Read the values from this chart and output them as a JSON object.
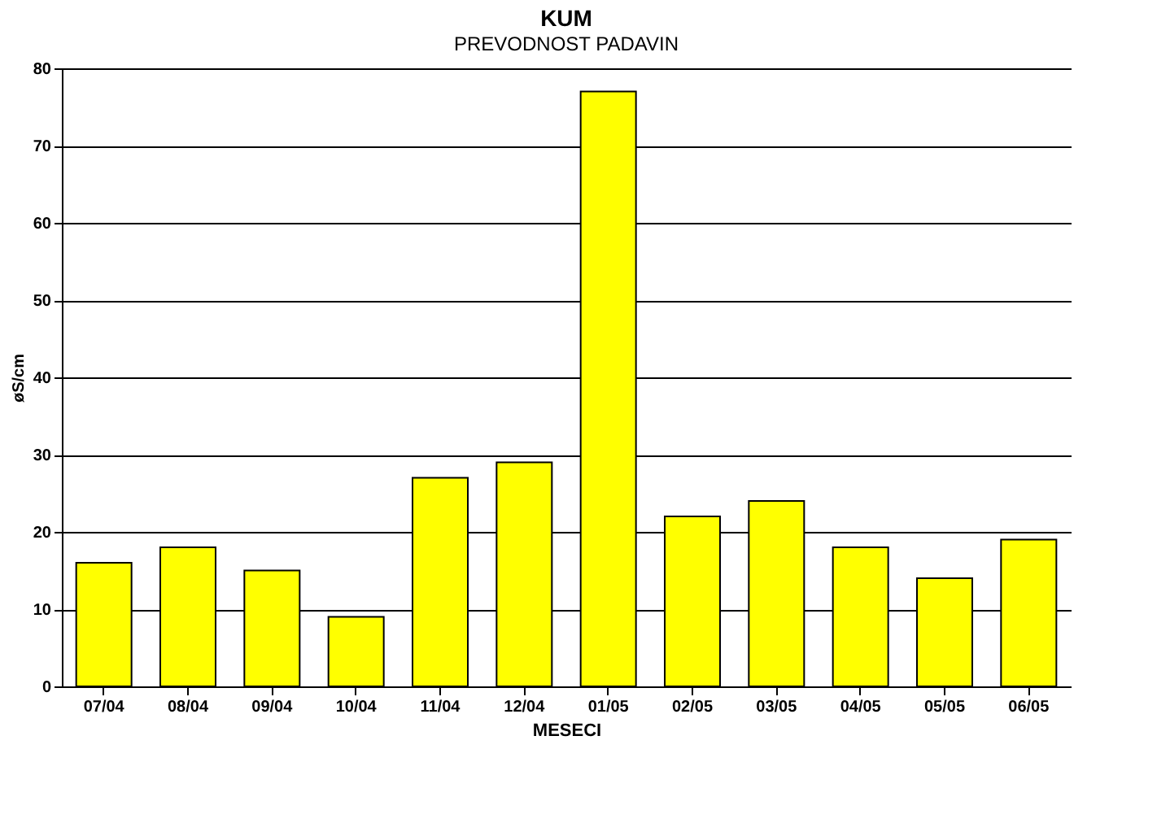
{
  "chart_data": {
    "type": "bar",
    "title": "KUM",
    "subtitle": "PREVODNOST PADAVIN",
    "xlabel": "MESECI",
    "ylabel": "øS/cm",
    "categories": [
      "07/04",
      "08/04",
      "09/04",
      "10/04",
      "11/04",
      "12/04",
      "01/05",
      "02/05",
      "03/05",
      "04/05",
      "05/05",
      "06/05"
    ],
    "values": [
      16,
      18,
      15,
      9,
      27,
      29,
      77,
      22,
      24,
      18,
      14,
      19
    ],
    "color": "#ffff00",
    "ylim": [
      0,
      80
    ],
    "yticks": [
      0,
      10,
      20,
      30,
      40,
      50,
      60,
      70,
      80
    ],
    "grid": "y"
  }
}
